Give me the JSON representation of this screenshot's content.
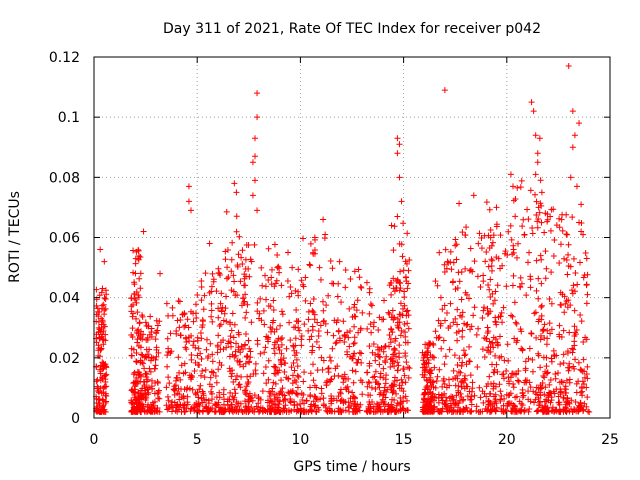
{
  "chart_data": {
    "type": "scatter",
    "title": "Day 311 of 2021, Rate Of TEC Index for receiver p042",
    "xlabel": "GPS time / hours",
    "ylabel": "ROTI / TECUs",
    "xlim": [
      0,
      25
    ],
    "ylim": [
      0,
      0.12
    ],
    "x_ticks": [
      0,
      5,
      10,
      15,
      20,
      25
    ],
    "x_tick_labels": [
      "0",
      "5",
      "10",
      "15",
      "20",
      "25"
    ],
    "y_ticks": [
      0,
      0.02,
      0.04,
      0.06,
      0.08,
      0.1,
      0.12
    ],
    "y_tick_labels": [
      "0",
      "0.02",
      "0.04",
      "0.06",
      "0.08",
      "0.1",
      "0.12"
    ],
    "grid": true,
    "marker": "plus",
    "color": "#ff0000",
    "clusters": [
      {
        "x": [
          0.1,
          0.6
        ],
        "y": [
          0.002,
          0.045
        ]
      },
      {
        "x": [
          1.8,
          2.3
        ],
        "y": [
          0.002,
          0.058
        ]
      },
      {
        "x": [
          2.2,
          3.2
        ],
        "y": [
          0.002,
          0.035
        ]
      },
      {
        "x": [
          3.5,
          5.1
        ],
        "y": [
          0.002,
          0.042
        ]
      },
      {
        "x": [
          5.0,
          6.3
        ],
        "y": [
          0.002,
          0.05
        ]
      },
      {
        "x": [
          6.3,
          7.5
        ],
        "y": [
          0.002,
          0.07
        ]
      },
      {
        "x": [
          7.3,
          9.0
        ],
        "y": [
          0.002,
          0.058
        ]
      },
      {
        "x": [
          8.5,
          10.0
        ],
        "y": [
          0.002,
          0.05
        ]
      },
      {
        "x": [
          9.8,
          11.5
        ],
        "y": [
          0.002,
          0.06
        ]
      },
      {
        "x": [
          11.5,
          13.0
        ],
        "y": [
          0.002,
          0.052
        ]
      },
      {
        "x": [
          13.2,
          14.5
        ],
        "y": [
          0.002,
          0.045
        ]
      },
      {
        "x": [
          14.4,
          15.3
        ],
        "y": [
          0.002,
          0.065
        ]
      },
      {
        "x": [
          15.9,
          16.5
        ],
        "y": [
          0.002,
          0.025
        ]
      },
      {
        "x": [
          16.5,
          18.0
        ],
        "y": [
          0.002,
          0.062
        ]
      },
      {
        "x": [
          17.5,
          19.5
        ],
        "y": [
          0.002,
          0.072
        ]
      },
      {
        "x": [
          19.0,
          20.5
        ],
        "y": [
          0.002,
          0.065
        ]
      },
      {
        "x": [
          20.3,
          22.0
        ],
        "y": [
          0.002,
          0.08
        ]
      },
      {
        "x": [
          21.5,
          23.0
        ],
        "y": [
          0.002,
          0.072
        ]
      },
      {
        "x": [
          22.5,
          24.0
        ],
        "y": [
          0.002,
          0.068
        ]
      }
    ],
    "outliers": [
      {
        "x": 0.3,
        "y": 0.056
      },
      {
        "x": 0.5,
        "y": 0.052
      },
      {
        "x": 2.4,
        "y": 0.062
      },
      {
        "x": 3.2,
        "y": 0.048
      },
      {
        "x": 4.6,
        "y": 0.077
      },
      {
        "x": 4.6,
        "y": 0.072
      },
      {
        "x": 4.7,
        "y": 0.069
      },
      {
        "x": 5.6,
        "y": 0.058
      },
      {
        "x": 6.8,
        "y": 0.078
      },
      {
        "x": 6.9,
        "y": 0.075
      },
      {
        "x": 7.9,
        "y": 0.108
      },
      {
        "x": 7.9,
        "y": 0.1
      },
      {
        "x": 7.8,
        "y": 0.093
      },
      {
        "x": 7.8,
        "y": 0.087
      },
      {
        "x": 7.7,
        "y": 0.085
      },
      {
        "x": 7.8,
        "y": 0.079
      },
      {
        "x": 7.7,
        "y": 0.074
      },
      {
        "x": 7.9,
        "y": 0.069
      },
      {
        "x": 9.4,
        "y": 0.055
      },
      {
        "x": 9.6,
        "y": 0.05
      },
      {
        "x": 10.7,
        "y": 0.06
      },
      {
        "x": 11.1,
        "y": 0.066
      },
      {
        "x": 11.2,
        "y": 0.061
      },
      {
        "x": 11.9,
        "y": 0.052
      },
      {
        "x": 14.7,
        "y": 0.093
      },
      {
        "x": 14.8,
        "y": 0.091
      },
      {
        "x": 14.7,
        "y": 0.088
      },
      {
        "x": 14.8,
        "y": 0.08
      },
      {
        "x": 14.9,
        "y": 0.072
      },
      {
        "x": 14.7,
        "y": 0.067
      },
      {
        "x": 17.0,
        "y": 0.109
      },
      {
        "x": 18.4,
        "y": 0.074
      },
      {
        "x": 19.5,
        "y": 0.07
      },
      {
        "x": 20.2,
        "y": 0.081
      },
      {
        "x": 20.3,
        "y": 0.077
      },
      {
        "x": 21.2,
        "y": 0.105
      },
      {
        "x": 21.3,
        "y": 0.102
      },
      {
        "x": 21.4,
        "y": 0.094
      },
      {
        "x": 21.6,
        "y": 0.093
      },
      {
        "x": 21.5,
        "y": 0.088
      },
      {
        "x": 21.5,
        "y": 0.085
      },
      {
        "x": 21.4,
        "y": 0.081
      },
      {
        "x": 21.7,
        "y": 0.075
      },
      {
        "x": 22.1,
        "y": 0.067
      },
      {
        "x": 23.0,
        "y": 0.117
      },
      {
        "x": 23.2,
        "y": 0.102
      },
      {
        "x": 23.5,
        "y": 0.098
      },
      {
        "x": 23.3,
        "y": 0.094
      },
      {
        "x": 23.2,
        "y": 0.09
      },
      {
        "x": 23.1,
        "y": 0.08
      },
      {
        "x": 23.4,
        "y": 0.077
      },
      {
        "x": 23.6,
        "y": 0.071
      },
      {
        "x": 23.5,
        "y": 0.065
      },
      {
        "x": 23.6,
        "y": 0.062
      }
    ],
    "points_per_cluster": 140,
    "seed": 311
  }
}
